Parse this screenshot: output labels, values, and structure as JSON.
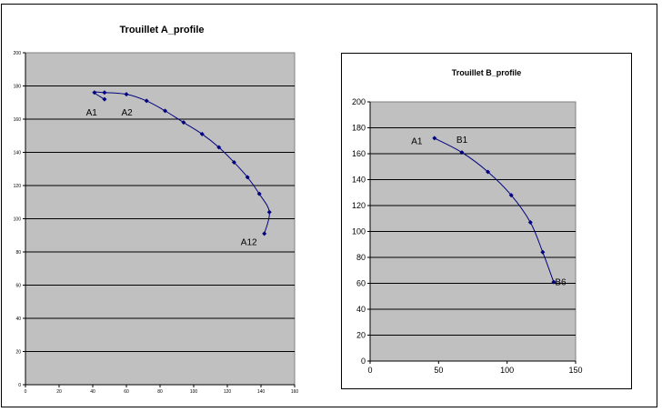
{
  "chart_data": [
    {
      "type": "line",
      "title": "Trouillet A_profile",
      "xlabel": "",
      "ylabel": "",
      "xlim": [
        0,
        160
      ],
      "ylim": [
        0,
        200
      ],
      "xticks": [
        "0",
        "20",
        "40",
        "60",
        "80",
        "100",
        "120",
        "140",
        "160"
      ],
      "yticks": [
        "0",
        "20",
        "40",
        "60",
        "80",
        "100",
        "120",
        "140",
        "160",
        "180",
        "200"
      ],
      "grid": "horizontal",
      "plot_background": "#c0c0c0",
      "series": [
        {
          "color": "#000080",
          "x": [
            47,
            41,
            47,
            60,
            72,
            83,
            94,
            105,
            115,
            124,
            132,
            139,
            145,
            142
          ],
          "y": [
            172,
            176,
            176,
            175,
            171,
            165,
            158,
            151,
            143,
            134,
            125,
            115,
            104,
            91
          ]
        }
      ],
      "annotations": [
        {
          "text": "A1",
          "x": 36,
          "y": 164
        },
        {
          "text": "A2",
          "x": 57,
          "y": 164
        },
        {
          "text": "A12",
          "x": 128,
          "y": 86
        }
      ]
    },
    {
      "type": "line",
      "title": "Trouillet B_profile",
      "xlabel": "",
      "ylabel": "",
      "xlim": [
        0,
        150
      ],
      "ylim": [
        0,
        200
      ],
      "xticks": [
        "0",
        "50",
        "100",
        "150"
      ],
      "yticks": [
        "0",
        "20",
        "40",
        "60",
        "80",
        "100",
        "120",
        "140",
        "160",
        "180",
        "200"
      ],
      "grid": "horizontal",
      "plot_background": "#c0c0c0",
      "series": [
        {
          "color": "#000080",
          "x": [
            47,
            67,
            86,
            103,
            117,
            126,
            134
          ],
          "y": [
            172,
            161,
            146,
            128,
            107,
            84,
            61
          ]
        }
      ],
      "annotations": [
        {
          "text": "A1",
          "x": 30,
          "y": 170
        },
        {
          "text": "B1",
          "x": 63,
          "y": 171
        },
        {
          "text": "B6",
          "x": 135,
          "y": 61
        }
      ]
    }
  ]
}
